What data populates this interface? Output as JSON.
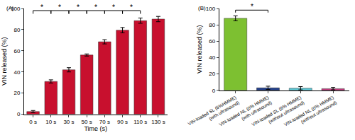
{
  "chart_data": [
    {
      "type": "bar",
      "title": "(A)",
      "x_label": "Time (s)",
      "y_label": "VIN released (%)",
      "categories": [
        "0 s",
        "10 s",
        "30 s",
        "50 s",
        "70 s",
        "90 s",
        "110 s",
        "130 s"
      ],
      "values": [
        2.5,
        31,
        42,
        56,
        68.5,
        79.5,
        88.5,
        90
      ],
      "errors": [
        1,
        1.5,
        2,
        1,
        2,
        2.5,
        2.5,
        2.5
      ],
      "color": "#c8102e",
      "ylim": [
        0,
        100
      ],
      "yticks": [
        0,
        20,
        40,
        60,
        80,
        100
      ],
      "brackets": [
        {
          "from": "0 s",
          "to": "10 s",
          "label": "*"
        },
        {
          "from": "10 s",
          "to": "30 s",
          "label": "*"
        },
        {
          "from": "30 s",
          "to": "50 s",
          "label": "*"
        },
        {
          "from": "50 s",
          "to": "70 s",
          "label": "*"
        },
        {
          "from": "70 s",
          "to": "90 s",
          "label": "*"
        },
        {
          "from": "90 s",
          "to": "110 s",
          "label": "*"
        }
      ]
    },
    {
      "type": "bar",
      "title": "(B)",
      "y_label": "VIN released (%)",
      "categories": [
        "VIN-loaded SL (6%HMME)\n(with ultrasound)",
        "VIN-loaded NL (0% HMME)\n(with ultrasound)",
        "VIN-loaded SL (6% HMME)\n(without ultrasound)",
        "VIN-loaded NL (0% HMME)\n(without ultrasound)"
      ],
      "values": [
        88,
        3,
        2.5,
        2
      ],
      "errors": [
        3,
        2,
        2,
        1.5
      ],
      "colors": [
        "#7dc031",
        "#1f3c88",
        "#5bc8d6",
        "#c0357a"
      ],
      "ylim": [
        0,
        100
      ],
      "yticks": [
        0,
        20,
        40,
        60,
        80,
        100
      ],
      "brackets": [
        {
          "from": "VIN-loaded SL (6%HMME)\n(with ultrasound)",
          "to": "VIN-loaded NL (0% HMME)\n(with ultrasound)",
          "label": "*"
        }
      ]
    }
  ]
}
